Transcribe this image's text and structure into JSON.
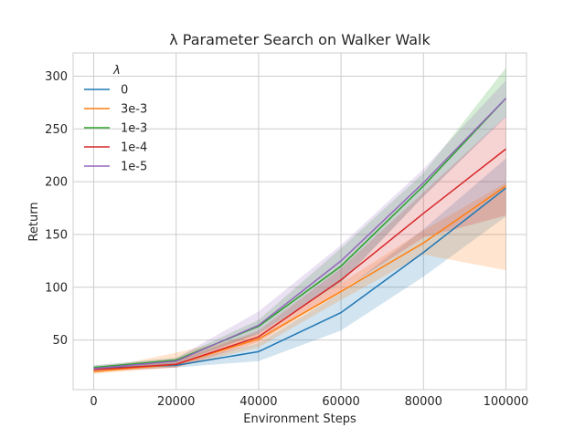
{
  "chart_data": {
    "type": "line",
    "title": "λ Parameter Search on Walker Walk",
    "xlabel": "Environment Steps",
    "ylabel": "Return",
    "x": [
      0,
      20000,
      40000,
      60000,
      80000,
      100000
    ],
    "x_ticks": [
      0,
      20000,
      40000,
      60000,
      80000,
      100000
    ],
    "y_ticks": [
      50,
      100,
      150,
      200,
      250,
      300
    ],
    "xlim": [
      -5000,
      105000
    ],
    "ylim": [
      3,
      322
    ],
    "grid": true,
    "legend_title": "λ",
    "legend_position": "top-left",
    "series": [
      {
        "name": "0",
        "color": "#1f77b4",
        "values": [
          23,
          26,
          39,
          76,
          133,
          194
        ],
        "lower": [
          21,
          24,
          30,
          59,
          110,
          167
        ],
        "upper": [
          25,
          28,
          47,
          95,
          155,
          222
        ]
      },
      {
        "name": "3e-3",
        "color": "#ff7f0e",
        "values": [
          20,
          27,
          51,
          96,
          142,
          196
        ],
        "lower": [
          18,
          24,
          43,
          88,
          131,
          116
        ],
        "upper": [
          22,
          38,
          56,
          104,
          154,
          199
        ]
      },
      {
        "name": "1e-3",
        "color": "#2ca02c",
        "values": [
          24,
          31,
          63,
          120,
          196,
          279
        ],
        "lower": [
          22,
          28,
          56,
          104,
          186,
          262
        ],
        "upper": [
          26,
          33,
          69,
          137,
          208,
          308
        ]
      },
      {
        "name": "1e-4",
        "color": "#d62728",
        "values": [
          22,
          27,
          53,
          107,
          170,
          231
        ],
        "lower": [
          20,
          24,
          48,
          97,
          147,
          168
        ],
        "upper": [
          24,
          30,
          59,
          118,
          190,
          262
        ]
      },
      {
        "name": "1e-5",
        "color": "#9467bd",
        "values": [
          23,
          30,
          64,
          125,
          199,
          279
        ],
        "lower": [
          21,
          27,
          56,
          105,
          186,
          261
        ],
        "upper": [
          26,
          33,
          77,
          140,
          212,
          296
        ]
      }
    ]
  }
}
